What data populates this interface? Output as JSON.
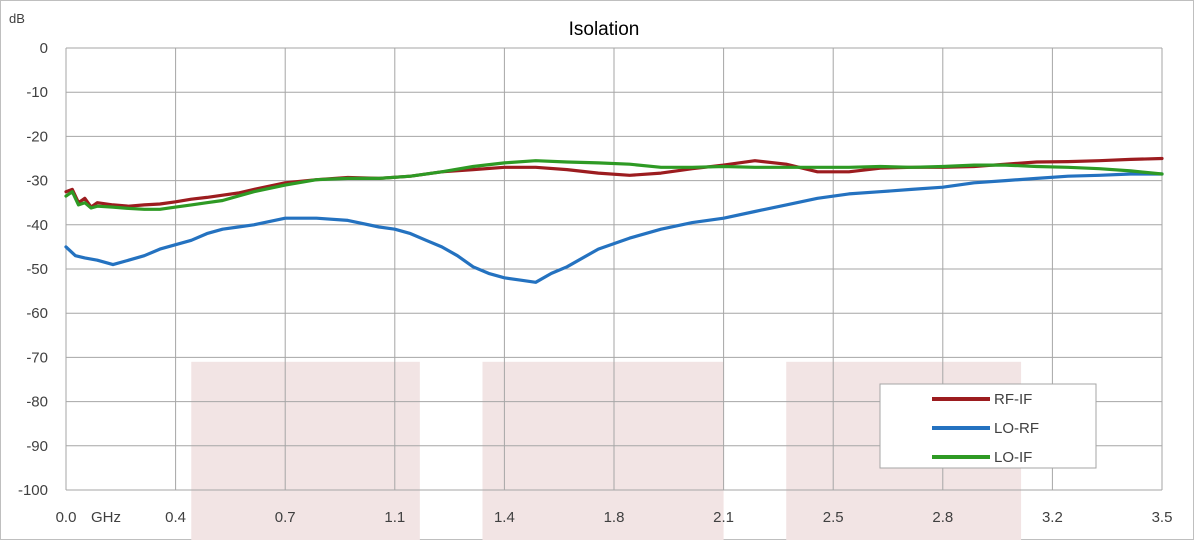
{
  "chart_data": {
    "type": "line",
    "title": "Isolation",
    "ylabel": "dB",
    "x_unit_label": "GHz",
    "ylim": [
      -100,
      0
    ],
    "xlim": [
      0.0,
      3.5
    ],
    "grid": true,
    "legend_placement": "bottom-right",
    "y_ticks": [
      0,
      -10,
      -20,
      -30,
      -40,
      -50,
      -60,
      -70,
      -80,
      -90,
      -100
    ],
    "x_ticks": [
      "0.0",
      "0.4",
      "0.7",
      "1.1",
      "1.4",
      "1.8",
      "2.1",
      "2.5",
      "2.8",
      "3.2",
      "3.5"
    ],
    "shaded_bands": [
      [
        0.4,
        1.13
      ],
      [
        1.33,
        2.1
      ],
      [
        2.3,
        3.05
      ]
    ],
    "shaded_bands_y_top": -71,
    "series": [
      {
        "name": "RF-IF",
        "color": "#9c1c1f",
        "x": [
          0.0,
          0.02,
          0.04,
          0.06,
          0.08,
          0.1,
          0.15,
          0.2,
          0.25,
          0.3,
          0.35,
          0.4,
          0.45,
          0.5,
          0.55,
          0.6,
          0.7,
          0.8,
          0.9,
          1.0,
          1.1,
          1.2,
          1.3,
          1.4,
          1.5,
          1.6,
          1.7,
          1.8,
          1.9,
          2.0,
          2.1,
          2.2,
          2.3,
          2.4,
          2.5,
          2.6,
          2.7,
          2.8,
          2.9,
          3.0,
          3.1,
          3.2,
          3.3,
          3.4,
          3.5
        ],
        "y": [
          -32.5,
          -32,
          -35,
          -34,
          -36,
          -35,
          -35.5,
          -35.8,
          -35.5,
          -35.3,
          -34.8,
          -34.2,
          -33.8,
          -33.3,
          -32.8,
          -32,
          -30.5,
          -29.8,
          -29.3,
          -29.5,
          -29,
          -28,
          -27.5,
          -27,
          -27,
          -27.5,
          -28.3,
          -28.8,
          -28.3,
          -27.3,
          -26.5,
          -25.5,
          -26.3,
          -28,
          -28,
          -27.2,
          -27,
          -27,
          -26.8,
          -26.3,
          -25.8,
          -25.7,
          -25.5,
          -25.2,
          -25
        ]
      },
      {
        "name": "LO-RF",
        "color": "#2472c0",
        "x": [
          0.0,
          0.03,
          0.06,
          0.1,
          0.15,
          0.2,
          0.25,
          0.3,
          0.35,
          0.4,
          0.45,
          0.5,
          0.55,
          0.6,
          0.7,
          0.8,
          0.9,
          1.0,
          1.05,
          1.1,
          1.15,
          1.2,
          1.25,
          1.3,
          1.35,
          1.4,
          1.45,
          1.5,
          1.55,
          1.6,
          1.7,
          1.8,
          1.9,
          2.0,
          2.1,
          2.2,
          2.3,
          2.4,
          2.5,
          2.6,
          2.7,
          2.8,
          2.9,
          3.0,
          3.1,
          3.2,
          3.3,
          3.4,
          3.5
        ],
        "y": [
          -45,
          -47,
          -47.5,
          -48,
          -49,
          -48,
          -47,
          -45.5,
          -44.5,
          -43.5,
          -42,
          -41,
          -40.5,
          -40,
          -38.5,
          -38.5,
          -39,
          -40.5,
          -41,
          -42,
          -43.5,
          -45,
          -47,
          -49.5,
          -51,
          -52,
          -52.5,
          -53,
          -51,
          -49.5,
          -45.5,
          -43,
          -41,
          -39.5,
          -38.5,
          -37,
          -35.5,
          -34,
          -33,
          -32.5,
          -32,
          -31.5,
          -30.5,
          -30,
          -29.5,
          -29,
          -28.8,
          -28.5,
          -28.5
        ]
      },
      {
        "name": "LO-IF",
        "color": "#2e9a24",
        "x": [
          0.0,
          0.02,
          0.04,
          0.06,
          0.08,
          0.1,
          0.15,
          0.2,
          0.25,
          0.3,
          0.35,
          0.4,
          0.45,
          0.5,
          0.55,
          0.6,
          0.7,
          0.8,
          0.9,
          1.0,
          1.1,
          1.2,
          1.3,
          1.4,
          1.5,
          1.6,
          1.7,
          1.8,
          1.9,
          2.0,
          2.1,
          2.2,
          2.3,
          2.4,
          2.5,
          2.6,
          2.7,
          2.8,
          2.9,
          3.0,
          3.1,
          3.2,
          3.3,
          3.4,
          3.5
        ],
        "y": [
          -33.5,
          -32.5,
          -35.5,
          -35,
          -36.2,
          -35.8,
          -36,
          -36.3,
          -36.5,
          -36.5,
          -36,
          -35.5,
          -35,
          -34.5,
          -33.5,
          -32.5,
          -31,
          -29.8,
          -29.5,
          -29.5,
          -29,
          -28,
          -26.8,
          -26,
          -25.5,
          -25.8,
          -26,
          -26.3,
          -27,
          -27,
          -26.8,
          -27,
          -27,
          -27,
          -27,
          -26.8,
          -27,
          -26.8,
          -26.5,
          -26.5,
          -26.8,
          -27,
          -27.3,
          -27.8,
          -28.5
        ]
      }
    ]
  }
}
